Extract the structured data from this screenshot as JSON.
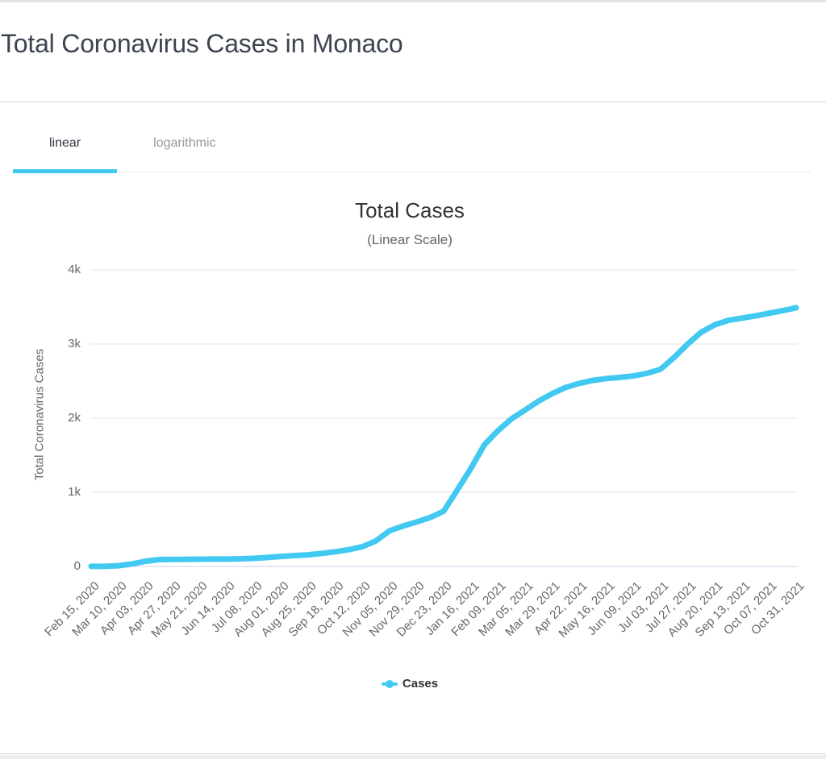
{
  "page": {
    "title": "Total Coronavirus Cases in Monaco"
  },
  "tabs": {
    "linear": "linear",
    "logarithmic": "logarithmic",
    "active": "linear"
  },
  "colors": {
    "accent": "#41c9f2",
    "grid_line": "#e6e6e6",
    "zero_axis_line": "#ccd6eb",
    "title_text": "#3d4451",
    "axis_text": "#666666"
  },
  "legend": {
    "label": "Cases"
  },
  "chart_data": {
    "type": "line",
    "title": "Total Cases",
    "subtitle": "(Linear Scale)",
    "xlabel": "",
    "ylabel": "Total Coronavirus Cases",
    "ylim": [
      0,
      4000
    ],
    "grid": true,
    "legend_position": "bottom",
    "ytick_values": [
      0,
      1000,
      2000,
      3000,
      4000
    ],
    "ytick_labels": [
      "0",
      "1k",
      "2k",
      "3k",
      "4k"
    ],
    "categories": [
      "Feb 15, 2020",
      "Mar 10, 2020",
      "Apr 03, 2020",
      "Apr 27, 2020",
      "May 21, 2020",
      "Jun 14, 2020",
      "Jul 08, 2020",
      "Aug 01, 2020",
      "Aug 25, 2020",
      "Sep 18, 2020",
      "Oct 12, 2020",
      "Nov 05, 2020",
      "Nov 29, 2020",
      "Dec 23, 2020",
      "Jan 16, 2021",
      "Feb 09, 2021",
      "Mar 05, 2021",
      "Mar 29, 2021",
      "Apr 22, 2021",
      "May 16, 2021",
      "Jun 09, 2021",
      "Jul 03, 2021",
      "Jul 27, 2021",
      "Aug 20, 2021",
      "Sep 13, 2021",
      "Oct 07, 2021",
      "Oct 31, 2021"
    ],
    "series": [
      {
        "name": "Cases",
        "color": "#41c9f2",
        "x": [
          "Feb 15, 2020",
          "Feb 27, 2020",
          "Mar 10, 2020",
          "Mar 22, 2020",
          "Apr 03, 2020",
          "Apr 15, 2020",
          "Apr 27, 2020",
          "May 09, 2020",
          "May 21, 2020",
          "Jun 02, 2020",
          "Jun 14, 2020",
          "Jun 26, 2020",
          "Jul 08, 2020",
          "Jul 20, 2020",
          "Aug 01, 2020",
          "Aug 13, 2020",
          "Aug 25, 2020",
          "Sep 06, 2020",
          "Sep 18, 2020",
          "Sep 30, 2020",
          "Oct 12, 2020",
          "Oct 24, 2020",
          "Nov 05, 2020",
          "Nov 17, 2020",
          "Nov 29, 2020",
          "Dec 11, 2020",
          "Dec 23, 2020",
          "Jan 04, 2021",
          "Jan 16, 2021",
          "Jan 28, 2021",
          "Feb 09, 2021",
          "Feb 21, 2021",
          "Mar 05, 2021",
          "Mar 17, 2021",
          "Mar 29, 2021",
          "Apr 10, 2021",
          "Apr 22, 2021",
          "May 04, 2021",
          "May 16, 2021",
          "May 28, 2021",
          "Jun 09, 2021",
          "Jun 21, 2021",
          "Jul 03, 2021",
          "Jul 15, 2021",
          "Jul 27, 2021",
          "Aug 08, 2021",
          "Aug 20, 2021",
          "Sep 01, 2021",
          "Sep 13, 2021",
          "Sep 25, 2021",
          "Oct 07, 2021",
          "Oct 19, 2021",
          "Oct 31, 2021"
        ],
        "values": [
          1,
          1,
          10,
          33,
          70,
          92,
          96,
          96,
          98,
          99,
          99,
          103,
          109,
          121,
          135,
          147,
          156,
          175,
          198,
          226,
          265,
          345,
          480,
          545,
          600,
          660,
          745,
          1030,
          1320,
          1640,
          1830,
          1990,
          2110,
          2230,
          2330,
          2415,
          2470,
          2510,
          2535,
          2550,
          2570,
          2605,
          2660,
          2820,
          3000,
          3160,
          3260,
          3320,
          3350,
          3380,
          3415,
          3450,
          3490
        ]
      }
    ]
  }
}
